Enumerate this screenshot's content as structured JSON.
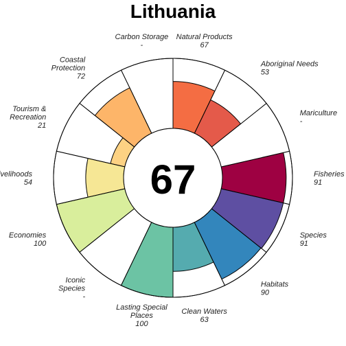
{
  "chart_data": {
    "type": "flower",
    "title": "Lithuania",
    "center_score": "67",
    "max_value": 100,
    "petals": [
      {
        "name": "Fisheries",
        "label_lines": [
          "Fisheries"
        ],
        "value_text": "91",
        "value": 91,
        "color": "#9E0142"
      },
      {
        "name": "Mariculture",
        "label_lines": [
          "Mariculture"
        ],
        "value_text": "-",
        "value": null,
        "color": "#D53E4F"
      },
      {
        "name": "Aboriginal Needs",
        "label_lines": [
          "Aboriginal Needs"
        ],
        "value_text": "53",
        "value": 53,
        "color": "#E45A4A"
      },
      {
        "name": "Natural Products",
        "label_lines": [
          "Natural Products"
        ],
        "value_text": "67",
        "value": 67,
        "color": "#F46D43"
      },
      {
        "name": "Carbon Storage",
        "label_lines": [
          "Carbon Storage"
        ],
        "value_text": "-",
        "value": null,
        "color": "#FDAE61"
      },
      {
        "name": "Coastal Protection",
        "label_lines": [
          "Coastal",
          "Protection"
        ],
        "value_text": "72",
        "value": 72,
        "color": "#FDB569"
      },
      {
        "name": "Tourism & Recreation",
        "label_lines": [
          "Tourism &",
          "Recreation"
        ],
        "value_text": "21",
        "value": 21,
        "color": "#FDD283"
      },
      {
        "name": "Livelihoods",
        "label_lines": [
          "Livelihoods"
        ],
        "value_text": "54",
        "value": 54,
        "color": "#F6E795"
      },
      {
        "name": "Economies",
        "label_lines": [
          "Economies"
        ],
        "value_text": "100",
        "value": 100,
        "color": "#D9EE9C"
      },
      {
        "name": "Iconic Species",
        "label_lines": [
          "Iconic",
          "Species"
        ],
        "value_text": "-",
        "value": null,
        "color": "#A5D9A4"
      },
      {
        "name": "Lasting Special Places",
        "label_lines": [
          "Lasting Special",
          "Places"
        ],
        "value_text": "100",
        "value": 100,
        "color": "#6CC3A4"
      },
      {
        "name": "Clean Waters",
        "label_lines": [
          "Clean Waters"
        ],
        "value_text": "63",
        "value": 63,
        "color": "#55ABAF"
      },
      {
        "name": "Habitats",
        "label_lines": [
          "Habitats"
        ],
        "value_text": "90",
        "value": 90,
        "color": "#3386BC"
      },
      {
        "name": "Species",
        "label_lines": [
          "Species"
        ],
        "value_text": "91",
        "value": 91,
        "color": "#5E4FA2"
      }
    ]
  }
}
